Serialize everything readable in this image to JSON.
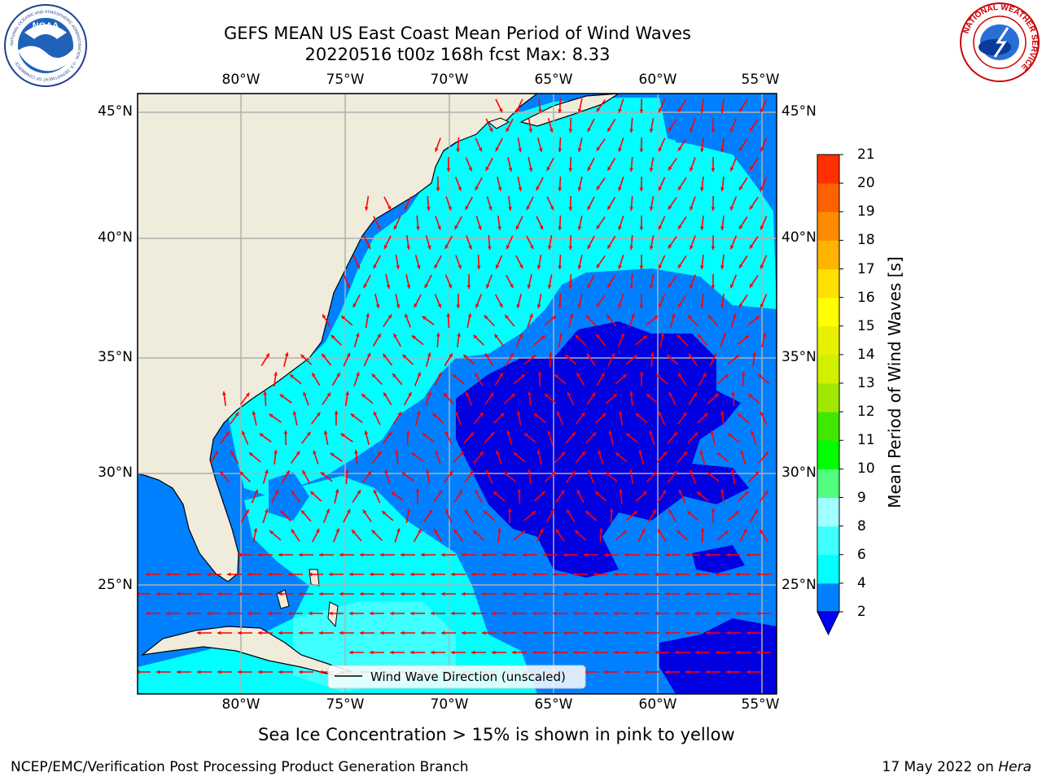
{
  "title": {
    "line1": "GEFS MEAN US East Coast Mean Period of Wind Waves",
    "line2": "20220516 t00z 168h fcst   Max: 8.33"
  },
  "map": {
    "lon_labels": [
      "80°W",
      "75°W",
      "70°W",
      "65°W",
      "60°W",
      "55°W"
    ],
    "lat_labels": [
      "45°N",
      "40°N",
      "35°N",
      "30°N",
      "25°N"
    ],
    "legend_text": "Wind Wave Direction (unscaled)",
    "arrow_color": "#ff0000",
    "land_color": "#efecdc",
    "ocean_color": "#0080ff",
    "gridline_color": "#b0b0b0"
  },
  "colorbar": {
    "label": "Mean Period of Wind Waves [s]",
    "ticks": [
      "2",
      "4",
      "6",
      "8",
      "9",
      "10",
      "11",
      "12",
      "13",
      "14",
      "15",
      "16",
      "17",
      "18",
      "19",
      "20",
      "21"
    ],
    "colors": [
      "#0080ff",
      "#00ffff",
      "#40ffff",
      "#a0ffff",
      "#50ff80",
      "#00ff00",
      "#40e800",
      "#a0e800",
      "#d0f000",
      "#e8f000",
      "#ffff00",
      "#ffe000",
      "#ffb400",
      "#ff8c00",
      "#ff6000",
      "#ff3000",
      "#ff0000"
    ],
    "extend_color": "#0000ff"
  },
  "subnote": "Sea Ice Concentration > 15% is shown in pink to yellow",
  "footer": {
    "left": "NCEP/EMC/Verification Post Processing Product Generation Branch",
    "right_prefix": "17 May 2022 on ",
    "right_italic": "Hera"
  },
  "logos": {
    "noaa_text": "NOAA",
    "noaa_ring": "NATIONAL OCEANIC AND ATMOSPHERIC ADMINISTRATION · U.S. DEPARTMENT OF COMMERCE",
    "nws_ring": "NATIONAL WEATHER SERVICE"
  }
}
